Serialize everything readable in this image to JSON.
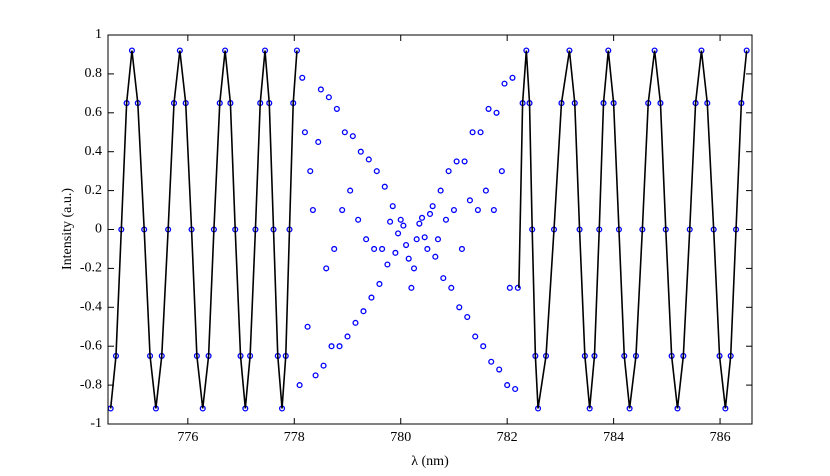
{
  "chart_data": {
    "type": "scatter",
    "xlabel": "λ (nm)",
    "ylabel": "Intensity (a.u.)",
    "xlim": [
      774.5,
      786.6
    ],
    "ylim": [
      -1,
      1
    ],
    "xticks": [
      776,
      778,
      780,
      782,
      784,
      786
    ],
    "yticks": [
      -1,
      -0.8,
      -0.6,
      -0.4,
      -0.2,
      0,
      0.2,
      0.4,
      0.6,
      0.8,
      1
    ],
    "series": [
      {
        "type": "scatter",
        "color": "#0000ff",
        "x": [
          774.55,
          774.65,
          774.75,
          774.85,
          774.95,
          775.06,
          775.18,
          775.29,
          775.4,
          775.51,
          775.63,
          775.74,
          775.85,
          775.96,
          776.07,
          776.17,
          776.28,
          776.39,
          776.49,
          776.6,
          776.7,
          776.8,
          776.89,
          776.99,
          777.08,
          777.17,
          777.27,
          777.36,
          777.45,
          777.53,
          777.61,
          777.69,
          777.77,
          777.84,
          777.91,
          777.98,
          778.05,
          778.1,
          778.2,
          778.3,
          778.4,
          778.5,
          778.6,
          778.7,
          778.8,
          778.9,
          779.0,
          779.1,
          779.2,
          779.3,
          779.4,
          779.5,
          779.6,
          779.7,
          779.8,
          779.9,
          780.0,
          780.1,
          780.2,
          780.3,
          780.4,
          780.5,
          780.6,
          780.7,
          780.8,
          780.9,
          781.0,
          781.1,
          781.2,
          781.3,
          781.4,
          781.5,
          781.6,
          781.7,
          781.8,
          781.9,
          782.0,
          782.1,
          782.2,
          778.15,
          778.25,
          778.35,
          778.45,
          778.55,
          778.65,
          778.75,
          778.85,
          778.95,
          779.05,
          779.15,
          779.25,
          779.35,
          779.45,
          779.55,
          779.65,
          779.75,
          779.85,
          779.95,
          780.05,
          780.15,
          780.25,
          780.35,
          780.45,
          780.55,
          780.65,
          780.75,
          780.85,
          780.95,
          781.05,
          781.15,
          781.25,
          781.35,
          781.45,
          781.55,
          781.65,
          781.75,
          781.85,
          781.95,
          782.05,
          782.15,
          782.29,
          782.36,
          782.42,
          782.47,
          782.53,
          782.58,
          782.73,
          782.88,
          783.02,
          783.17,
          783.27,
          783.36,
          783.46,
          783.55,
          783.64,
          783.73,
          783.81,
          783.9,
          784.0,
          784.1,
          784.2,
          784.3,
          784.42,
          784.54,
          784.65,
          784.77,
          784.88,
          784.98,
          785.09,
          785.2,
          785.31,
          785.43,
          785.54,
          785.65,
          785.76,
          785.88,
          785.99,
          786.1,
          786.2,
          786.3,
          786.4,
          786.5
        ],
        "values": [
          -0.92,
          -0.65,
          0,
          0.65,
          0.92,
          0.65,
          0,
          -0.65,
          -0.92,
          -0.65,
          0,
          0.65,
          0.92,
          0.65,
          0,
          -0.65,
          -0.92,
          -0.65,
          0,
          0.65,
          0.92,
          0.65,
          0,
          -0.65,
          -0.92,
          -0.65,
          0,
          0.65,
          0.92,
          0.65,
          0,
          -0.65,
          -0.92,
          -0.65,
          0,
          0.65,
          0.92,
          -0.8,
          0.5,
          0.3,
          -0.75,
          0.72,
          -0.2,
          -0.6,
          0.62,
          0.1,
          -0.55,
          0.48,
          0.05,
          -0.42,
          0.36,
          -0.1,
          -0.28,
          0.22,
          0.04,
          -0.12,
          0.05,
          -0.08,
          -0.3,
          -0.05,
          0.06,
          -0.1,
          0.12,
          -0.05,
          -0.25,
          0.3,
          0.1,
          -0.4,
          0.35,
          0.15,
          -0.55,
          0.5,
          0.2,
          -0.68,
          0.6,
          0.3,
          -0.8,
          0.78,
          -0.3,
          0.78,
          -0.5,
          0.1,
          0.45,
          -0.7,
          0.68,
          -0.1,
          -0.6,
          0.5,
          0.2,
          -0.48,
          0.4,
          -0.05,
          -0.35,
          0.3,
          -0.1,
          -0.18,
          0.12,
          -0.02,
          0.02,
          -0.15,
          -0.2,
          0.03,
          -0.04,
          0.08,
          -0.14,
          0.2,
          0.05,
          -0.3,
          0.35,
          -0.1,
          -0.45,
          0.5,
          0.1,
          -0.6,
          0.62,
          0.1,
          -0.72,
          0.75,
          -0.3,
          -0.82,
          0.65,
          0.92,
          0.65,
          0,
          -0.65,
          -0.92,
          -0.65,
          0,
          0.65,
          0.92,
          0.65,
          0,
          -0.65,
          -0.92,
          -0.65,
          0,
          0.65,
          0.92,
          0.65,
          0,
          -0.65,
          -0.92,
          -0.65,
          0,
          0.65,
          0.92,
          0.65,
          0,
          -0.65,
          -0.92,
          -0.65,
          0,
          0.65,
          0.92,
          0.65,
          0,
          -0.65,
          -0.92,
          -0.65,
          0,
          0.65,
          0.92
        ]
      },
      {
        "type": "line",
        "color": "#000000",
        "x": [
          774.55,
          774.65,
          774.75,
          774.85,
          774.95,
          775.06,
          775.18,
          775.29,
          775.4,
          775.51,
          775.63,
          775.74,
          775.85,
          775.96,
          776.07,
          776.17,
          776.28,
          776.39,
          776.49,
          776.6,
          776.7,
          776.8,
          776.89,
          776.99,
          777.08,
          777.17,
          777.27,
          777.36,
          777.45,
          777.53,
          777.61,
          777.69,
          777.77,
          777.84,
          777.91,
          777.98,
          778.05,
          null,
          782.22,
          782.29,
          782.36,
          782.42,
          782.47,
          782.53,
          782.58,
          782.73,
          782.88,
          783.02,
          783.17,
          783.27,
          783.36,
          783.46,
          783.55,
          783.64,
          783.73,
          783.81,
          783.9,
          784.0,
          784.1,
          784.2,
          784.3,
          784.42,
          784.54,
          784.65,
          784.77,
          784.88,
          784.98,
          785.09,
          785.2,
          785.31,
          785.43,
          785.54,
          785.65,
          785.76,
          785.88,
          785.99,
          786.1,
          786.2,
          786.3,
          786.4,
          786.5
        ],
        "values": [
          -0.92,
          -0.65,
          0,
          0.65,
          0.92,
          0.65,
          0,
          -0.65,
          -0.92,
          -0.65,
          0,
          0.65,
          0.92,
          0.65,
          0,
          -0.65,
          -0.92,
          -0.65,
          0,
          0.65,
          0.92,
          0.65,
          0,
          -0.65,
          -0.92,
          -0.65,
          0,
          0.65,
          0.92,
          0.65,
          0,
          -0.65,
          -0.92,
          -0.65,
          0,
          0.65,
          0.92,
          null,
          -0.3,
          0.65,
          0.92,
          0.65,
          0,
          -0.65,
          -0.92,
          -0.65,
          0,
          0.65,
          0.92,
          0.65,
          0,
          -0.65,
          -0.92,
          -0.65,
          0,
          0.65,
          0.92,
          0.65,
          0,
          -0.65,
          -0.92,
          -0.65,
          0,
          0.65,
          0.92,
          0.65,
          0,
          -0.65,
          -0.92,
          -0.65,
          0,
          0.65,
          0.92,
          0.65,
          0,
          -0.65,
          -0.92,
          -0.65,
          0,
          0.65,
          0.92
        ]
      }
    ]
  }
}
